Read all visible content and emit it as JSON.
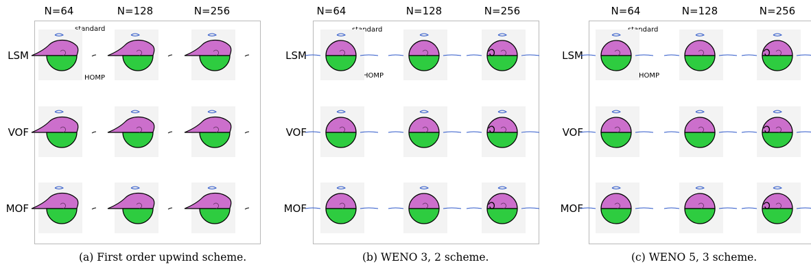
{
  "resolution_labels": [
    "N=64",
    "N=128",
    "N=256"
  ],
  "method_labels": [
    "LSM",
    "VOF",
    "MOF"
  ],
  "annotations": {
    "top": "standard",
    "bottom": "HOMP"
  },
  "colors": {
    "upper_fluid": "#cc6fcc",
    "lower_fluid": "#2ecc40",
    "interface": "#000000",
    "filament": "#2a55c8",
    "frame": "#b8b8b8"
  },
  "panels": [
    {
      "id": "a",
      "caption": "(a) First order upwind scheme."
    },
    {
      "id": "b",
      "caption": "(b) WENO 3, 2 scheme."
    },
    {
      "id": "c",
      "caption": "(c) WENO 5, 3 scheme."
    }
  ]
}
